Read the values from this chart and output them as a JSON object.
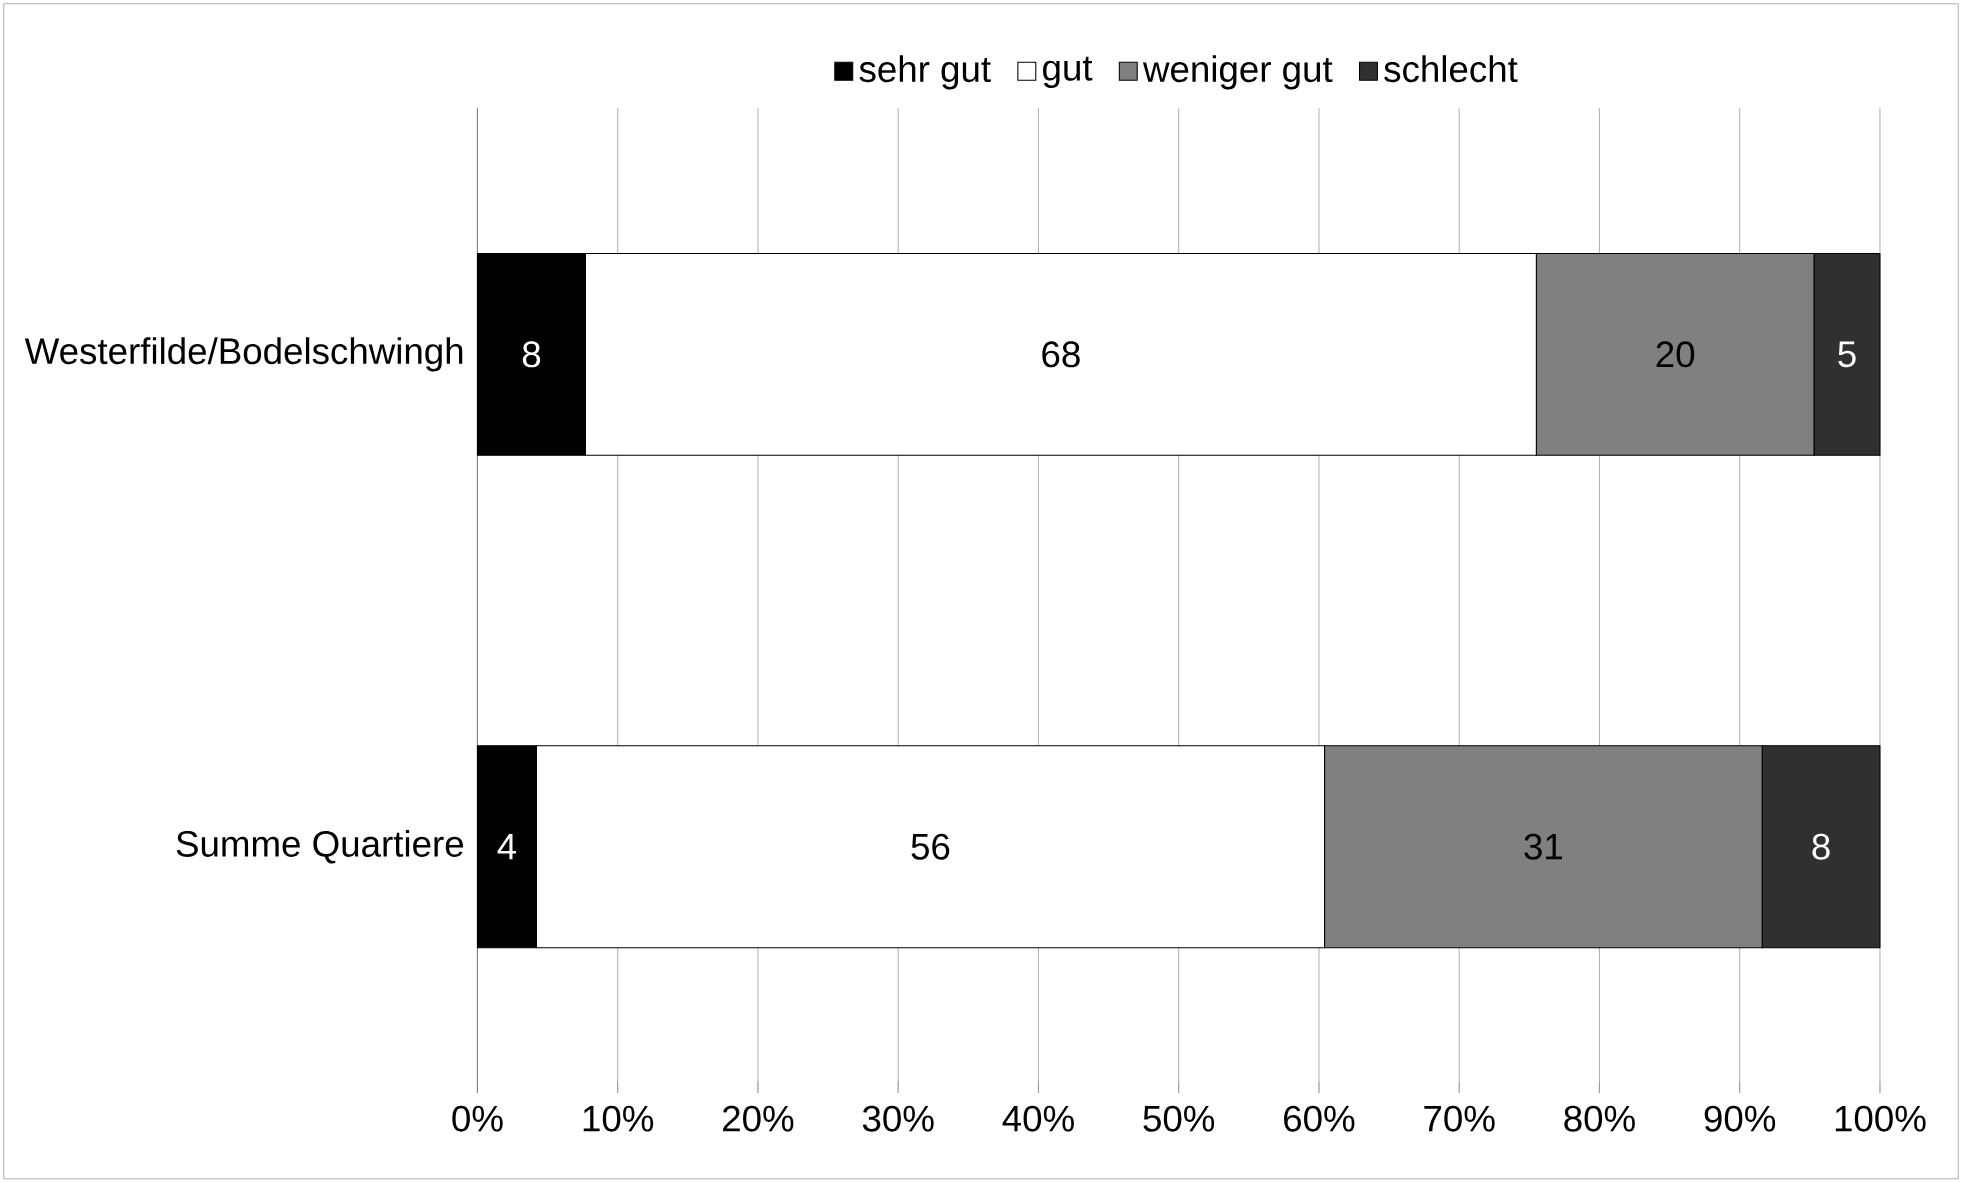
{
  "chart_data": {
    "type": "bar",
    "orientation": "horizontal",
    "stacked": true,
    "categories": [
      "Westerfilde/Bodelschwingh",
      "Summe Quartiere"
    ],
    "series": [
      {
        "name": "sehr gut",
        "color": "#000000",
        "values": [
          7.7,
          4.2
        ],
        "value_labels": [
          "8",
          "4"
        ]
      },
      {
        "name": "gut",
        "color": "#ffffff",
        "values": [
          67.8,
          56.2
        ],
        "value_labels": [
          "68",
          "56"
        ]
      },
      {
        "name": "weniger gut",
        "color": "#808080",
        "values": [
          19.8,
          31.2
        ],
        "value_labels": [
          "20",
          "31"
        ]
      },
      {
        "name": "schlecht",
        "color": "#303030",
        "values": [
          4.7,
          8.4
        ],
        "value_labels": [
          "5",
          "8"
        ]
      }
    ],
    "xlim": [
      0,
      100
    ],
    "xticks": [
      {
        "value": 0,
        "label": "0%"
      },
      {
        "value": 10,
        "label": "10%"
      },
      {
        "value": 20,
        "label": "20%"
      },
      {
        "value": 30,
        "label": "30%"
      },
      {
        "value": 40,
        "label": "40%"
      },
      {
        "value": 50,
        "label": "50%"
      },
      {
        "value": 60,
        "label": "60%"
      },
      {
        "value": 70,
        "label": "70%"
      },
      {
        "value": 80,
        "label": "80%"
      },
      {
        "value": 90,
        "label": "90%"
      },
      {
        "value": 100,
        "label": "100%"
      }
    ],
    "grid": "x",
    "legend": "top"
  }
}
